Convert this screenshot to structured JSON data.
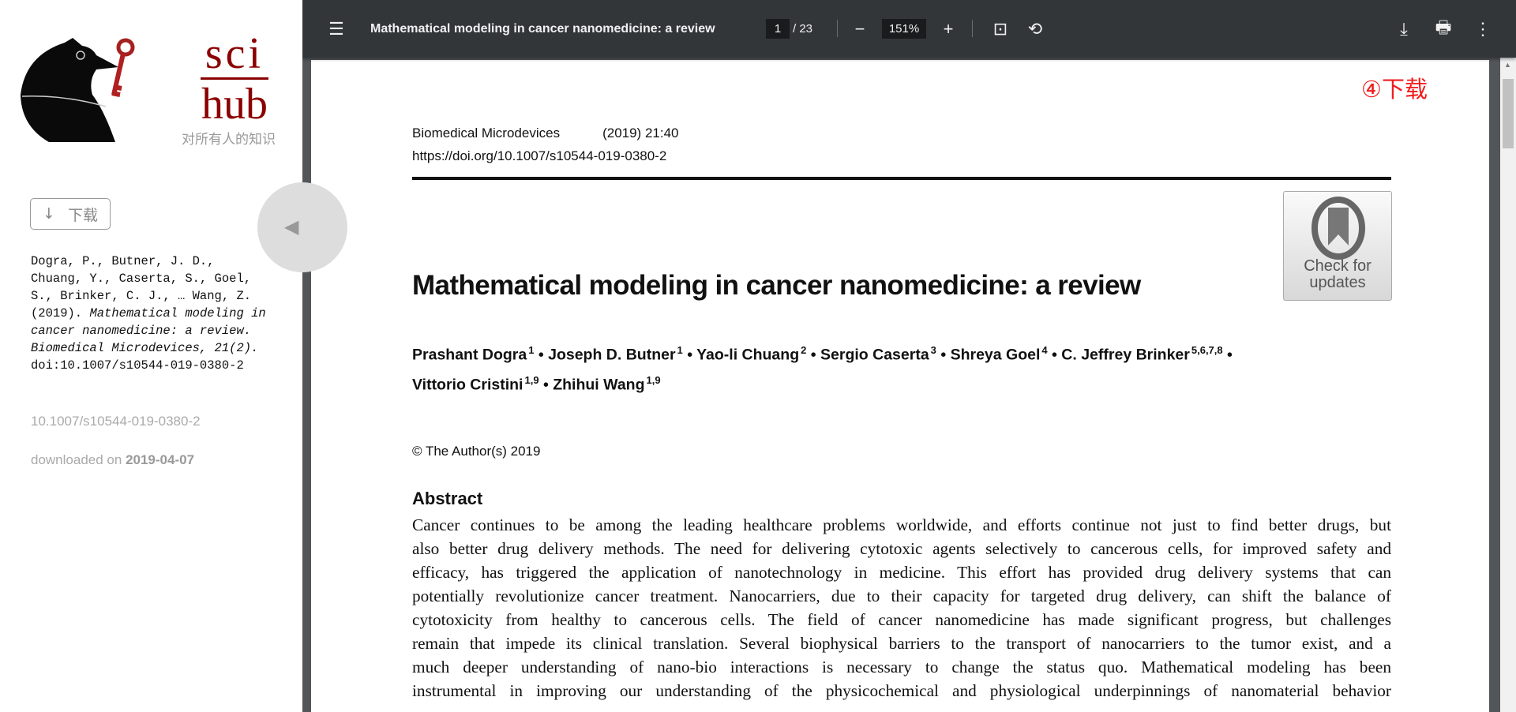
{
  "sidebar": {
    "logo": {
      "line1": "sci",
      "line2": "hub",
      "slogan": "对所有人的知识"
    },
    "download_button": {
      "icon": "arrow-down-icon",
      "arrow": "↓",
      "label": "下载"
    },
    "citation": {
      "authors": "Dogra, P., Butner, J. D., Chuang, Y., Caserta, S., Goel, S., Brinker, C. J., … Wang, Z.",
      "year": "(2019).",
      "title_journal": "Mathematical modeling in cancer nanomedicine: a review. Biomedical Microdevices, 21(2).",
      "doi": "doi:10.1007/s10544-019-0380-2"
    },
    "doi": "10.1007/s10544-019-0380-2",
    "downloaded_label": "downloaded on",
    "downloaded_date": "2019-04-07",
    "collapse_icon": "◀"
  },
  "toolbar": {
    "menu_icon": "☰",
    "title": "Mathematical modeling in cancer nanomedicine: a review",
    "page_current": "1",
    "page_total": "/ 23",
    "zoom_out": "−",
    "zoom": "151%",
    "zoom_in": "+",
    "fit_icon": "⊡",
    "rotate_icon": "⟲",
    "download_icon": "⤓",
    "print_icon": "🖶",
    "more_icon": "⋮"
  },
  "annotation": "④下载",
  "document": {
    "journal": "Biomedical Microdevices",
    "citation": "(2019) 21:40",
    "doi_url": "https://doi.org/10.1007/s10544-019-0380-2",
    "check_updates": {
      "line1": "Check for",
      "line2": "updates"
    },
    "title": "Mathematical modeling in cancer nanomedicine: a review",
    "authors": [
      {
        "name": "Prashant Dogra",
        "aff": "1"
      },
      {
        "name": "Joseph D. Butner",
        "aff": "1"
      },
      {
        "name": "Yao-li Chuang",
        "aff": "2"
      },
      {
        "name": "Sergio Caserta",
        "aff": "3"
      },
      {
        "name": "Shreya Goel",
        "aff": "4"
      },
      {
        "name": "C. Jeffrey Brinker",
        "aff": "5,6,7,8"
      },
      {
        "name": "Vittorio Cristini",
        "aff": "1,9"
      },
      {
        "name": "Zhihui Wang",
        "aff": "1,9"
      }
    ],
    "copyright": "© The Author(s) 2019",
    "abstract_heading": "Abstract",
    "abstract_lines": [
      "Cancer continues to be among the leading healthcare problems worldwide, and efforts continue not just to find better drugs, but",
      "also better drug delivery methods. The need for delivering cytotoxic agents selectively to cancerous cells, for improved safety and",
      "efficacy, has triggered the application of nanotechnology in medicine. This effort has provided drug delivery systems that can",
      "potentially revolutionize cancer treatment. Nanocarriers, due to their capacity for targeted drug delivery, can shift the balance of",
      "cytotoxicity from healthy to cancerous cells. The field of cancer nanomedicine has made significant progress, but challenges",
      "remain that impede its clinical translation. Several biophysical barriers to the transport of nanocarriers to the tumor exist, and a",
      "much deeper understanding of nano-bio interactions is necessary to change the status quo. Mathematical modeling has been",
      "instrumental in improving our understanding of the physicochemical and physiological underpinnings of nanomaterial behavior"
    ]
  }
}
